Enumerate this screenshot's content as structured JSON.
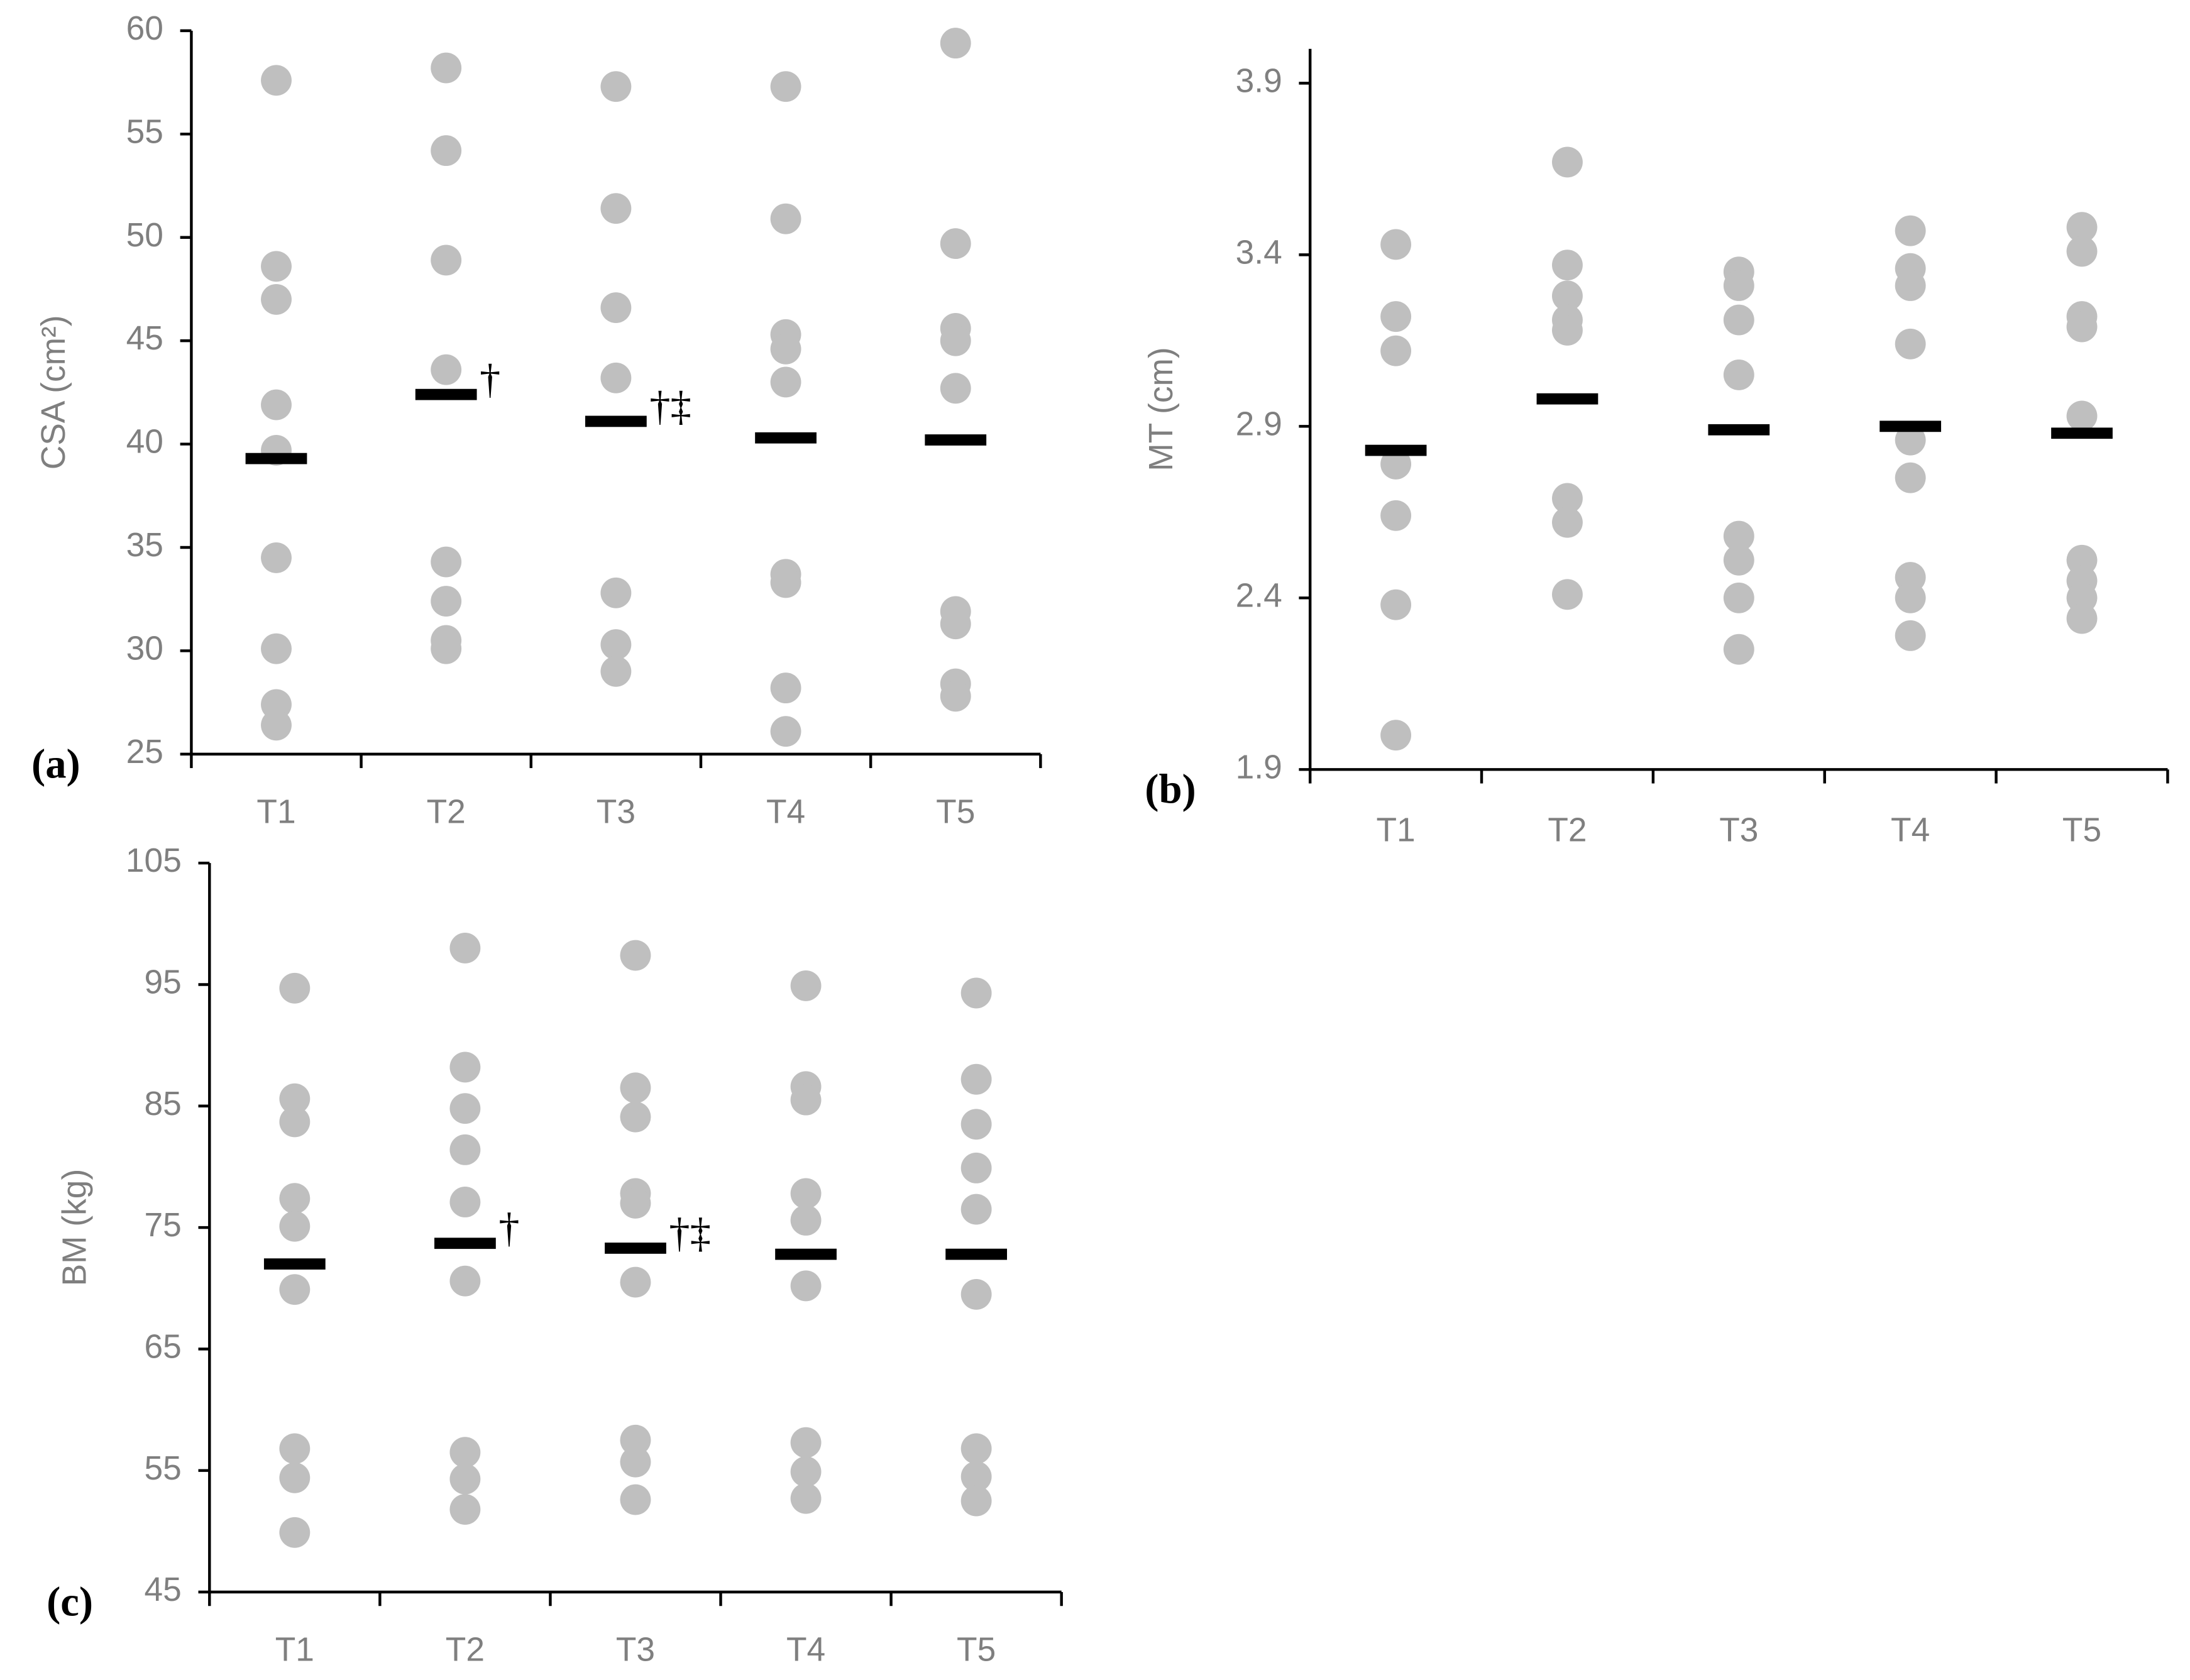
{
  "chart_data": [
    {
      "type": "dot",
      "panel_label": "(a)",
      "ylabel": "CSA (cm²)",
      "categories": [
        "T1",
        "T2",
        "T3",
        "T4",
        "T5"
      ],
      "ylim": [
        25,
        60
      ],
      "yticks": [
        25,
        30,
        35,
        40,
        45,
        50,
        55,
        60
      ],
      "dot_color": "#bfbfbf",
      "mean_color": "#000000",
      "points": [
        [
          57.6,
          48.6,
          47.0,
          41.9,
          39.7,
          34.5,
          30.1,
          27.4,
          26.4
        ],
        [
          58.2,
          54.2,
          48.9,
          43.6,
          34.3,
          32.4,
          30.5,
          30.1
        ],
        [
          57.3,
          51.4,
          46.6,
          43.2,
          32.8,
          30.3,
          29.0
        ],
        [
          57.3,
          50.9,
          45.3,
          44.6,
          43.0,
          33.7,
          33.3,
          28.2,
          26.1
        ],
        [
          59.4,
          49.7,
          45.6,
          45.0,
          42.7,
          31.9,
          31.3,
          28.4,
          27.8
        ]
      ],
      "means": [
        39.3,
        42.4,
        41.1,
        40.3,
        40.2
      ],
      "annotations": [
        null,
        "†",
        "†‡",
        null,
        null
      ]
    },
    {
      "type": "dot",
      "panel_label": "(b)",
      "ylabel": "MT (cm)",
      "categories": [
        "T1",
        "T2",
        "T3",
        "T4",
        "T5"
      ],
      "ylim": [
        1.9,
        4.0
      ],
      "yticks": [
        1.9,
        2.4,
        2.9,
        3.4,
        3.9
      ],
      "dot_color": "#bfbfbf",
      "mean_color": "#000000",
      "points": [
        [
          3.43,
          3.22,
          3.12,
          2.79,
          2.64,
          2.38,
          2.0
        ],
        [
          3.67,
          3.37,
          3.28,
          3.21,
          3.18,
          2.69,
          2.62,
          2.41
        ],
        [
          3.35,
          3.31,
          3.21,
          3.05,
          2.58,
          2.51,
          2.4,
          2.25
        ],
        [
          3.47,
          3.36,
          3.31,
          3.14,
          2.86,
          2.75,
          2.46,
          2.4,
          2.29
        ],
        [
          3.48,
          3.41,
          3.22,
          3.19,
          2.93,
          2.51,
          2.45,
          2.4,
          2.34
        ]
      ],
      "means": [
        2.83,
        2.98,
        2.89,
        2.9,
        2.88
      ],
      "annotations": [
        null,
        null,
        null,
        null,
        null
      ]
    },
    {
      "type": "dot",
      "panel_label": "(c)",
      "ylabel": "BM (kg)",
      "categories": [
        "T1",
        "T2",
        "T3",
        "T4",
        "T5"
      ],
      "ylim": [
        45,
        105
      ],
      "yticks": [
        45,
        55,
        65,
        75,
        85,
        95,
        105
      ],
      "dot_color": "#bfbfbf",
      "mean_color": "#000000",
      "points": [
        [
          94.7,
          85.6,
          83.7,
          77.4,
          75.1,
          69.9,
          56.8,
          54.4,
          49.9
        ],
        [
          98.0,
          88.2,
          84.8,
          81.4,
          77.1,
          70.6,
          56.5,
          54.3,
          51.8
        ],
        [
          97.4,
          86.5,
          84.1,
          77.8,
          77.0,
          70.5,
          57.5,
          55.7,
          52.6
        ],
        [
          94.9,
          86.6,
          85.5,
          77.8,
          75.6,
          70.2,
          57.3,
          54.9,
          52.7
        ],
        [
          94.3,
          87.2,
          83.5,
          79.9,
          76.5,
          69.5,
          56.8,
          54.5,
          52.5
        ]
      ],
      "means": [
        72.0,
        73.7,
        73.3,
        72.8,
        72.8
      ],
      "annotations": [
        null,
        "†",
        "†‡",
        null,
        null
      ]
    }
  ]
}
